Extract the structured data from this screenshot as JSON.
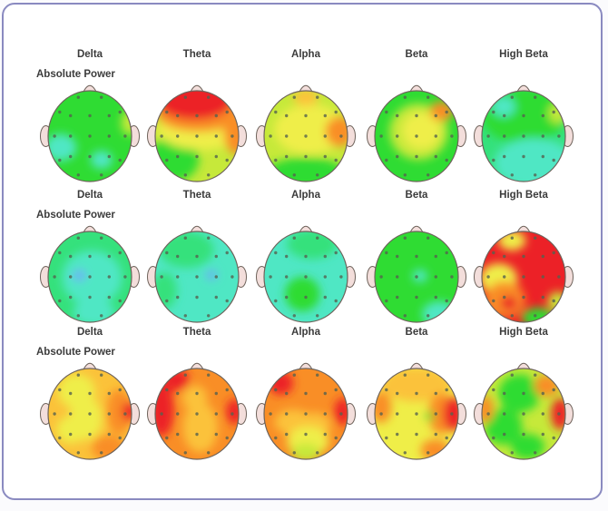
{
  "figure": {
    "background": "#ffffff",
    "border_color": "#8a8ac0"
  },
  "palette": {
    "red": "#ec2127",
    "orange": "#f98e26",
    "amber": "#fbc23a",
    "yellow": "#efee48",
    "yellowgreen": "#c6e93a",
    "green": "#2fdc33",
    "springgreen": "#35e17c",
    "cyan": "#4fe7c4",
    "blue": "#6cb2f4",
    "skin": "#f3dedb",
    "outline": "#6e635b",
    "electrode": "#55624f",
    "label": "#3b3b3b"
  },
  "chart_data": {
    "type": "heatmap",
    "subtype": "eeg-topographic-maps",
    "columns": [
      "Delta",
      "Theta",
      "Alpha",
      "Beta",
      "High Beta"
    ],
    "row_label": "Absolute Power",
    "grid": "3 rows x 5 columns of head maps",
    "color_scale_low_to_high": [
      "blue",
      "cyan",
      "springgreen",
      "green",
      "yellowgreen",
      "yellow",
      "amber",
      "orange",
      "red"
    ],
    "electrodes": [
      [
        "Fp1",
        -0.31,
        -0.95
      ],
      [
        "Fp2",
        0.31,
        -0.95
      ],
      [
        "F7",
        -0.81,
        -0.59
      ],
      [
        "F3",
        -0.52,
        -0.5
      ],
      [
        "Fz",
        0,
        -0.5
      ],
      [
        "F4",
        0.52,
        -0.5
      ],
      [
        "F8",
        0.81,
        -0.59
      ],
      [
        "T3",
        -0.95,
        0
      ],
      [
        "C3",
        -0.52,
        0
      ],
      [
        "Cz",
        0,
        0
      ],
      [
        "C4",
        0.52,
        0
      ],
      [
        "T4",
        0.95,
        0
      ],
      [
        "T5",
        -0.81,
        0.59
      ],
      [
        "P3",
        -0.52,
        0.5
      ],
      [
        "Pz",
        0,
        0.5
      ],
      [
        "P4",
        0.52,
        0.5
      ],
      [
        "T6",
        0.81,
        0.59
      ],
      [
        "O1",
        -0.31,
        0.95
      ],
      [
        "O2",
        0.31,
        0.95
      ]
    ],
    "rows": [
      {
        "label": "Absolute Power",
        "maps": [
          {
            "band": "Delta",
            "base": "green",
            "summary": "average (green) overall; small low cyan patches left temporal and right parietal",
            "blobs": [
              [
                -0.7,
                0.25,
                0.38,
                0.3,
                "cyan"
              ],
              [
                0.28,
                0.52,
                0.26,
                0.2,
                "cyan"
              ],
              [
                0.95,
                -0.3,
                0.2,
                0.28,
                "yellowgreen"
              ]
            ]
          },
          {
            "band": "Theta",
            "base": "yellowgreen",
            "summary": "markedly elevated red frontal band, orange mid-frontal, yellow central, green posterior-left",
            "blobs": [
              [
                -0.55,
                0.5,
                0.6,
                0.5,
                "green"
              ],
              [
                0.1,
                -0.15,
                1.05,
                0.45,
                "yellow"
              ],
              [
                0.95,
                -0.05,
                0.3,
                0.45,
                "orange"
              ],
              [
                0.05,
                -0.48,
                1.0,
                0.38,
                "orange"
              ],
              [
                -0.05,
                -0.78,
                0.9,
                0.42,
                "red"
              ]
            ]
          },
          {
            "band": "Alpha",
            "base": "yellowgreen",
            "summary": "mildly elevated yellow diffuse, orange focus right central-temporal, green occipital band",
            "blobs": [
              [
                0.1,
                -0.15,
                0.85,
                0.55,
                "yellow"
              ],
              [
                0.0,
                -0.85,
                0.3,
                0.18,
                "amber"
              ],
              [
                0.8,
                -0.1,
                0.33,
                0.33,
                "orange"
              ],
              [
                0.0,
                0.82,
                0.95,
                0.35,
                "green"
              ]
            ]
          },
          {
            "band": "Beta",
            "base": "green",
            "summary": "average green with yellow central region and small orange focus right frontal",
            "blobs": [
              [
                0.05,
                -0.1,
                0.7,
                0.62,
                "yellowgreen"
              ],
              [
                0.12,
                -0.12,
                0.45,
                0.4,
                "yellow"
              ],
              [
                0.6,
                -0.55,
                0.28,
                0.22,
                "orange"
              ]
            ]
          },
          {
            "band": "High Beta",
            "base": "springgreen",
            "summary": "green frontal half, low cyan posterior half, cyan patch left frontal",
            "blobs": [
              [
                0.0,
                -0.45,
                1.0,
                0.62,
                "green"
              ],
              [
                0.25,
                0.6,
                0.95,
                0.55,
                "cyan"
              ],
              [
                -0.48,
                -0.65,
                0.28,
                0.22,
                "cyan"
              ],
              [
                0.82,
                -0.5,
                0.22,
                0.22,
                "yellowgreen"
              ]
            ]
          }
        ]
      },
      {
        "label": "Absolute Power",
        "maps": [
          {
            "band": "Delta",
            "base": "springgreen",
            "summary": "low-average; cyan central region with small blue minimum left of vertex",
            "blobs": [
              [
                0.05,
                0.02,
                0.72,
                0.6,
                "cyan"
              ],
              [
                0.1,
                0.78,
                0.5,
                0.3,
                "cyan"
              ],
              [
                -0.25,
                -0.03,
                0.17,
                0.13,
                "blue"
              ]
            ]
          },
          {
            "band": "Theta",
            "base": "cyan",
            "summary": "low cyan overall, greener top-left diagonal, small blue minimum right of vertex",
            "blobs": [
              [
                -0.25,
                -0.6,
                0.65,
                0.4,
                "springgreen"
              ],
              [
                -0.78,
                0.3,
                0.3,
                0.4,
                "springgreen"
              ],
              [
                0.35,
                -0.04,
                0.14,
                0.11,
                "blue"
              ]
            ]
          },
          {
            "band": "Alpha",
            "base": "cyan",
            "summary": "low cyan with green frontal tinge and green patch left parietal",
            "blobs": [
              [
                0.15,
                -0.72,
                0.6,
                0.33,
                "springgreen"
              ],
              [
                -0.08,
                0.38,
                0.42,
                0.38,
                "green"
              ]
            ]
          },
          {
            "band": "Beta",
            "base": "green",
            "summary": "average green; small cyan spot at vertex and cyan right occipital patch",
            "blobs": [
              [
                0.08,
                -0.02,
                0.18,
                0.14,
                "cyan"
              ],
              [
                0.55,
                0.82,
                0.42,
                0.28,
                "cyan"
              ]
            ]
          },
          {
            "band": "High Beta",
            "base": "red",
            "summary": "markedly elevated red over most of scalp; yellow left temporal band, orange left parietal with red focus, green occipital",
            "blobs": [
              [
                -0.6,
                0.05,
                0.45,
                0.35,
                "yellow"
              ],
              [
                -0.28,
                -0.8,
                0.33,
                0.22,
                "yellow"
              ],
              [
                -0.45,
                0.5,
                0.48,
                0.4,
                "orange"
              ],
              [
                -0.35,
                0.58,
                0.2,
                0.16,
                "red"
              ],
              [
                0.35,
                0.9,
                0.4,
                0.22,
                "green"
              ],
              [
                0.82,
                0.55,
                0.24,
                0.22,
                "yellowgreen"
              ]
            ]
          }
        ]
      },
      {
        "label": "Absolute Power",
        "maps": [
          {
            "band": "Delta",
            "base": "amber",
            "summary": "elevated amber/yellow diffuse; orange right side with red focus at right temporal, orange right occipital",
            "blobs": [
              [
                -0.32,
                -0.5,
                0.45,
                0.38,
                "yellow"
              ],
              [
                -0.1,
                0.1,
                0.4,
                0.48,
                "yellow"
              ],
              [
                -0.45,
                0.35,
                0.35,
                0.3,
                "yellow"
              ],
              [
                0.7,
                -0.05,
                0.3,
                0.5,
                "orange"
              ],
              [
                0.95,
                -0.05,
                0.18,
                0.22,
                "red"
              ],
              [
                0.45,
                0.75,
                0.4,
                0.28,
                "orange"
              ]
            ]
          },
          {
            "band": "Theta",
            "base": "orange",
            "summary": "elevated orange; red left fronto-temporal band, red focus right temporal, amber central column",
            "blobs": [
              [
                0.08,
                0.3,
                0.42,
                0.55,
                "amber"
              ],
              [
                -0.05,
                -0.35,
                0.3,
                0.28,
                "amber"
              ],
              [
                -0.85,
                -0.1,
                0.3,
                0.6,
                "red"
              ],
              [
                -0.5,
                -0.75,
                0.32,
                0.24,
                "red"
              ],
              [
                0.9,
                -0.05,
                0.2,
                0.28,
                "red"
              ]
            ]
          },
          {
            "band": "Alpha",
            "base": "orange",
            "summary": "elevated orange; red foci left frontal and right temporal; yellow-green occipital center",
            "blobs": [
              [
                -0.3,
                0.18,
                0.45,
                0.28,
                "amber"
              ],
              [
                0.2,
                0.25,
                0.4,
                0.28,
                "amber"
              ],
              [
                0.05,
                0.6,
                0.5,
                0.33,
                "yellow"
              ],
              [
                0.0,
                0.85,
                0.35,
                0.2,
                "yellowgreen"
              ],
              [
                -0.6,
                -0.68,
                0.3,
                0.26,
                "red"
              ],
              [
                0.88,
                -0.05,
                0.2,
                0.3,
                "red"
              ]
            ]
          },
          {
            "band": "Beta",
            "base": "yellow",
            "summary": "yellow with amber frontal band, orange left temporal, red focus right temporal, small green spot right of vertex",
            "blobs": [
              [
                0.0,
                -0.65,
                0.85,
                0.38,
                "amber"
              ],
              [
                -0.85,
                -0.15,
                0.25,
                0.35,
                "orange"
              ],
              [
                0.6,
                0.0,
                0.32,
                0.45,
                "orange"
              ],
              [
                0.88,
                0.0,
                0.24,
                0.38,
                "red"
              ],
              [
                0.32,
                0.05,
                0.11,
                0.09,
                "green"
              ],
              [
                0.45,
                0.8,
                0.35,
                0.24,
                "orange"
              ]
            ]
          },
          {
            "band": "High Beta",
            "base": "yellowgreen",
            "summary": "yellow-green with green frontal/parietal/occipital regions; orange left temporal edge, orange right frontal, red focus right temporal",
            "blobs": [
              [
                -0.1,
                -0.45,
                0.5,
                0.42,
                "green"
              ],
              [
                -0.48,
                0.28,
                0.45,
                0.4,
                "green"
              ],
              [
                0.1,
                0.72,
                0.4,
                0.28,
                "green"
              ],
              [
                0.55,
                -0.62,
                0.3,
                0.24,
                "orange"
              ],
              [
                -0.92,
                -0.1,
                0.2,
                0.3,
                "orange"
              ],
              [
                0.88,
                0.0,
                0.22,
                0.35,
                "red"
              ]
            ]
          }
        ]
      }
    ]
  }
}
